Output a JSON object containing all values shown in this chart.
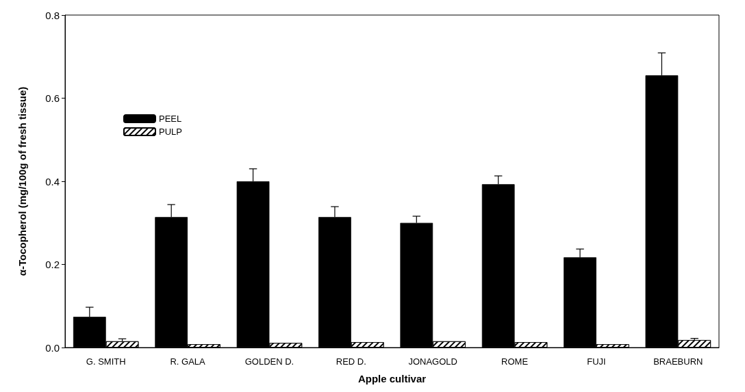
{
  "chart_data": {
    "type": "bar",
    "xlabel": "Apple cultivar",
    "ylabel": "α-Tocopherol (mg/100g of fresh tissue)",
    "categories": [
      "G. SMITH",
      "R. GALA",
      "GOLDEN D.",
      "RED D.",
      "JONAGOLD",
      "ROME",
      "FUJI",
      "BRAEBURN"
    ],
    "series": [
      {
        "name": "PEEL",
        "color": "#000000",
        "values": [
          0.074,
          0.314,
          0.4,
          0.314,
          0.3,
          0.393,
          0.217,
          0.655
        ],
        "errors": [
          0.023,
          0.03,
          0.03,
          0.025,
          0.016,
          0.02,
          0.02,
          0.054
        ]
      },
      {
        "name": "PULP",
        "color": "#ffffff",
        "values": [
          0.015,
          0.008,
          0.011,
          0.013,
          0.015,
          0.013,
          0.008,
          0.018
        ],
        "errors": [
          0.006,
          null,
          null,
          null,
          null,
          null,
          null,
          0.004
        ]
      }
    ],
    "ylim": [
      0,
      0.8
    ],
    "yticks": [
      {
        "value": 0,
        "label": "0.0"
      },
      0.2,
      0.4,
      0.6,
      0.8
    ],
    "grid": false,
    "legend": "top left"
  }
}
